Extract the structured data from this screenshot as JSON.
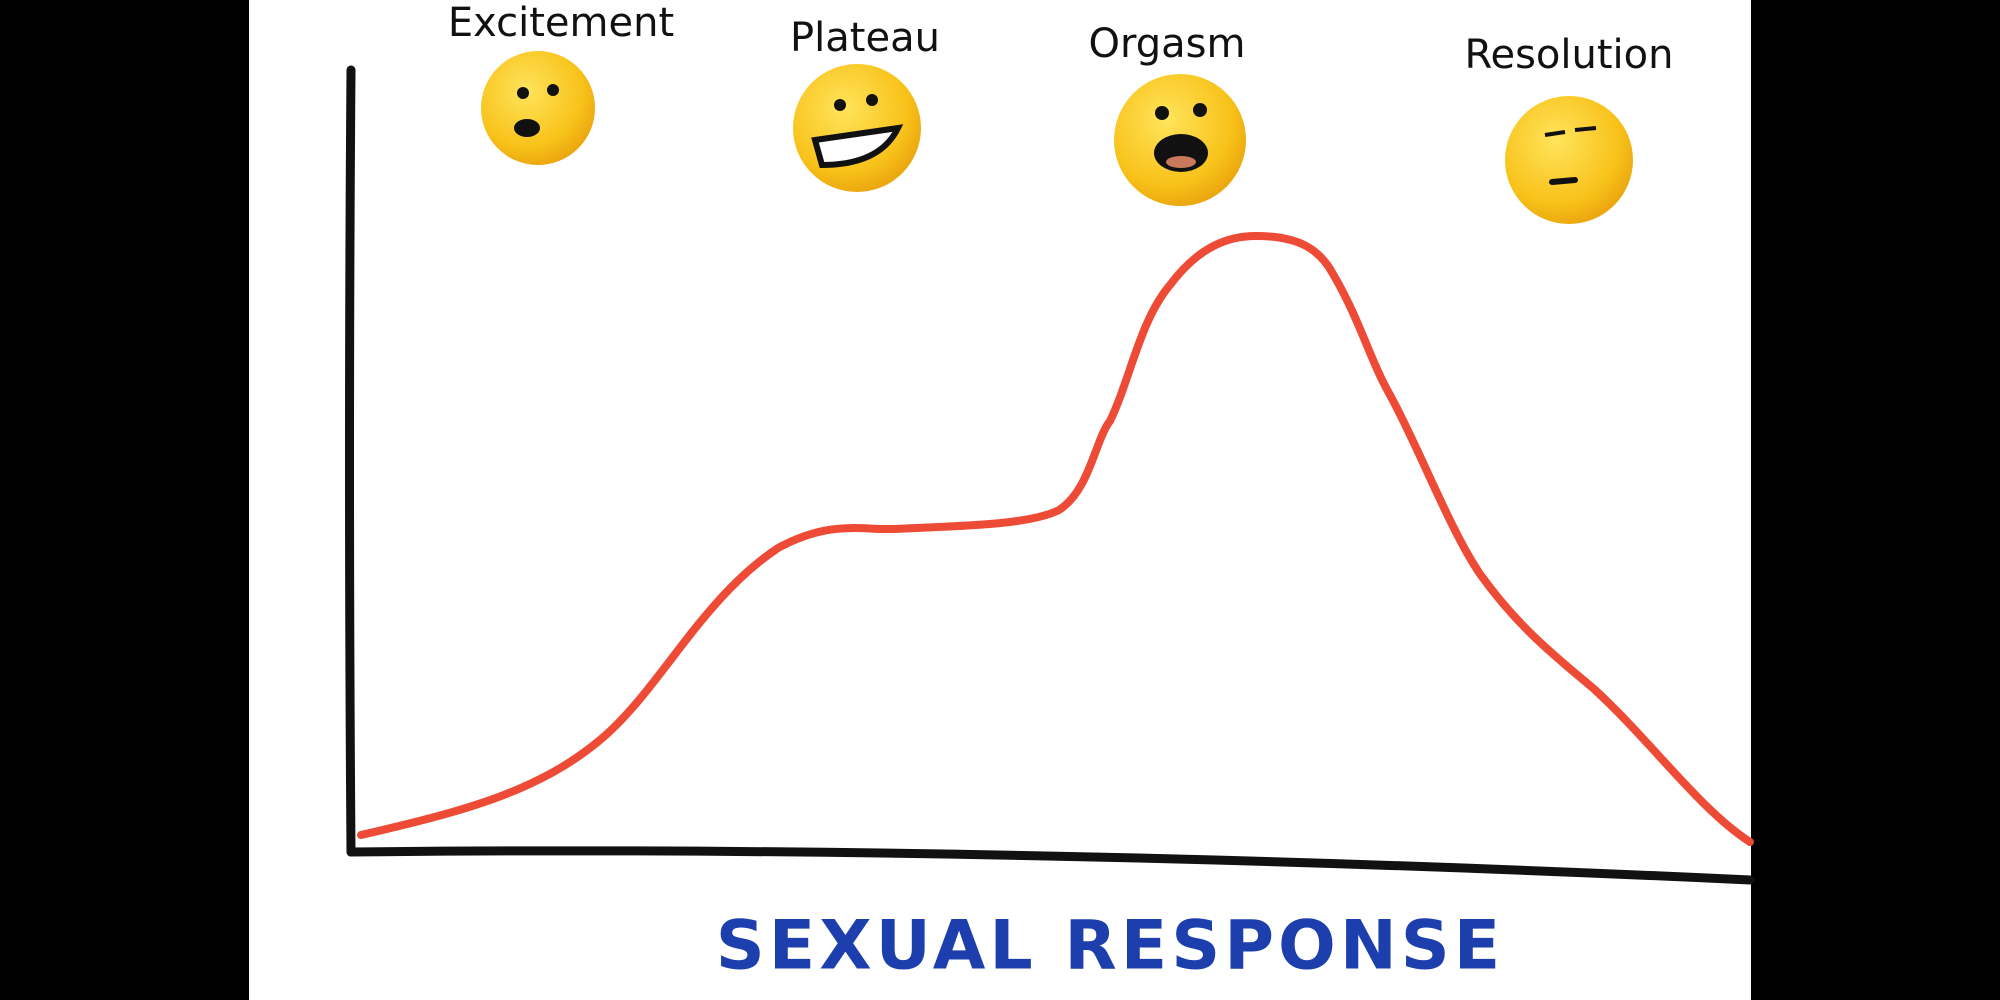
{
  "stages": [
    {
      "label": "Excitement"
    },
    {
      "label": "Plateau"
    },
    {
      "label": "Orgasm"
    },
    {
      "label": "Resolution"
    }
  ],
  "axis_label": "SEXUAL RESPONSE"
}
